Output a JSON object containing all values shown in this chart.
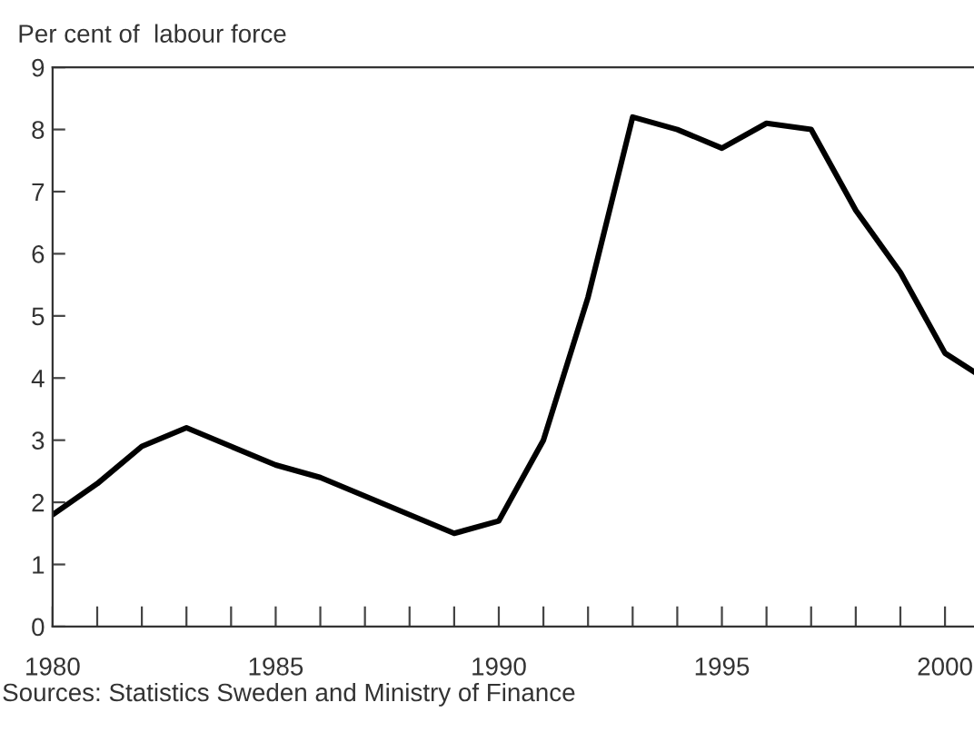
{
  "chart_data": {
    "type": "line",
    "ylabel": "Per cent of  labour force",
    "x": [
      1980,
      1981,
      1982,
      1983,
      1984,
      1985,
      1986,
      1987,
      1988,
      1989,
      1990,
      1991,
      1992,
      1993,
      1994,
      1995,
      1996,
      1997,
      1998,
      1999,
      2000,
      2000.65
    ],
    "series": [
      {
        "color": "#000000",
        "values": [
          1.8,
          2.3,
          2.9,
          3.2,
          2.9,
          2.6,
          2.4,
          2.1,
          1.8,
          1.5,
          1.7,
          3.0,
          5.3,
          8.2,
          8.0,
          7.7,
          8.1,
          8.0,
          6.7,
          5.7,
          4.4,
          4.1
        ]
      }
    ],
    "xlim": [
      1980,
      2000.65
    ],
    "xticks": [
      1980,
      {
        "value": 1981,
        "label": null
      },
      {
        "value": 1982,
        "label": null
      },
      {
        "value": 1983,
        "label": null
      },
      {
        "value": 1984,
        "label": null
      },
      1985,
      {
        "value": 1986,
        "label": null
      },
      {
        "value": 1987,
        "label": null
      },
      {
        "value": 1988,
        "label": null
      },
      {
        "value": 1989,
        "label": null
      },
      1990,
      {
        "value": 1991,
        "label": null
      },
      {
        "value": 1992,
        "label": null
      },
      {
        "value": 1993,
        "label": null
      },
      {
        "value": 1994,
        "label": null
      },
      1995,
      {
        "value": 1996,
        "label": null
      },
      {
        "value": 1997,
        "label": null
      },
      {
        "value": 1998,
        "label": null
      },
      {
        "value": 1999,
        "label": null
      },
      2000
    ],
    "ylim": [
      0,
      9
    ],
    "yticks": [
      0,
      1,
      2,
      3,
      4,
      5,
      6,
      7,
      8,
      9
    ],
    "annotations": [
      "Sources: Statistics Sweden and Ministry of Finance"
    ]
  }
}
